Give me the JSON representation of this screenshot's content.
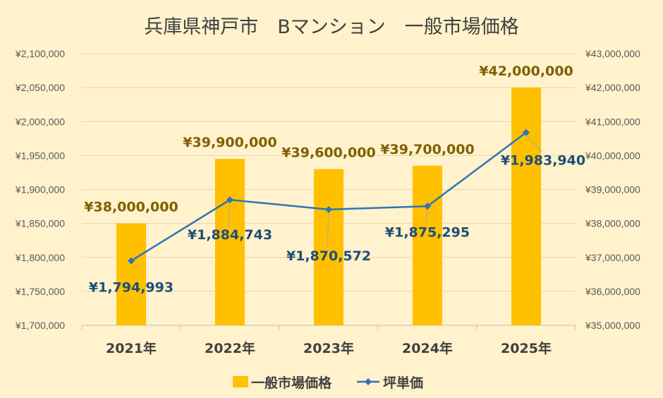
{
  "chart_data": {
    "type": "bar+line",
    "title": "兵庫県神戸市　Bマンション　一般市場価格",
    "categories": [
      "2021年",
      "2022年",
      "2023年",
      "2024年",
      "2025年"
    ],
    "series": [
      {
        "name": "一般市場価格",
        "type": "bar",
        "axis": "right",
        "color": "#FFC000",
        "values": [
          38000000,
          39900000,
          39600000,
          39700000,
          42000000
        ],
        "labels": [
          "¥38,000,000",
          "¥39,900,000",
          "¥39,600,000",
          "¥39,700,000",
          "¥42,000,000"
        ]
      },
      {
        "name": "坪単価",
        "type": "line",
        "axis": "left",
        "color": "#2E75B6",
        "marker": "diamond",
        "values": [
          1794993,
          1884743,
          1870572,
          1875295,
          1983940
        ],
        "labels": [
          "¥1,794,993",
          "¥1,884,743",
          "¥1,870,572",
          "¥1,875,295",
          "¥1,983,940"
        ]
      }
    ],
    "y_left": {
      "min": 1700000,
      "max": 2100000,
      "step": 50000,
      "ticks": [
        "¥1,700,000",
        "¥1,750,000",
        "¥1,800,000",
        "¥1,850,000",
        "¥1,900,000",
        "¥1,950,000",
        "¥2,000,000",
        "¥2,050,000",
        "¥2,100,000"
      ]
    },
    "y_right": {
      "min": 35000000,
      "max": 43000000,
      "step": 1000000,
      "ticks": [
        "¥35,000,000",
        "¥36,000,000",
        "¥37,000,000",
        "¥38,000,000",
        "¥39,000,000",
        "¥40,000,000",
        "¥41,000,000",
        "¥42,000,000",
        "¥43,000,000"
      ]
    },
    "grid": true,
    "legend_position": "bottom",
    "background": "#FFF2CC",
    "colors": {
      "gridline": "#E3D7B5",
      "axis_text": "#595959",
      "bar_label": "#7F6000",
      "line_label": "#1F4E79",
      "title": "#404040"
    }
  }
}
